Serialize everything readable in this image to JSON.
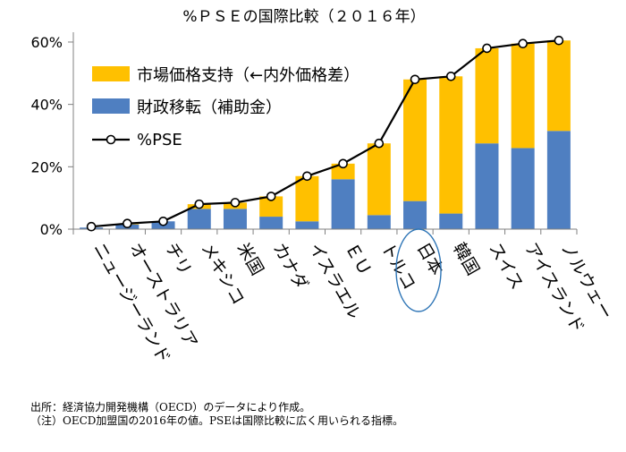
{
  "chart_data": {
    "type": "bar",
    "title": "%ＰＳＥの国際比較（２０１６年）",
    "categories": [
      "ニュージーランド",
      "オーストラリア",
      "チリ",
      "メキシコ",
      "米国",
      "カナダ",
      "イスラエル",
      "ＥＵ",
      "トルコ",
      "日本",
      "韓国",
      "スイス",
      "アイスランド",
      "ノルウェー"
    ],
    "series": [
      {
        "name": "財政移転（補助金）",
        "type": "stacked-bar",
        "color": "#4f7fc1",
        "values": [
          0.5,
          1.5,
          2.5,
          6.5,
          6.5,
          4.0,
          2.5,
          16.0,
          4.5,
          9.0,
          5.0,
          27.5,
          26.0,
          31.5
        ]
      },
      {
        "name": "市場価格支持（←内外価格差）",
        "type": "stacked-bar",
        "color": "#ffc000",
        "values": [
          0.0,
          0.2,
          0.0,
          1.5,
          2.0,
          6.5,
          14.5,
          5.0,
          23.0,
          39.0,
          44.0,
          30.5,
          33.5,
          29.0
        ]
      },
      {
        "name": "%PSE",
        "type": "line",
        "color": "#000000",
        "values": [
          0.8,
          1.8,
          2.5,
          8.0,
          8.5,
          10.5,
          17.0,
          21.0,
          27.5,
          48.0,
          49.0,
          58.0,
          59.5,
          60.5
        ]
      }
    ],
    "yticks": [
      "0%",
      "20%",
      "40%",
      "60%"
    ],
    "ylim": [
      0,
      62
    ],
    "grid": "none",
    "legend": "top-left inside plot",
    "highlight": {
      "category": "日本",
      "shape": "ellipse",
      "color": "#2e75b6"
    }
  },
  "notes": [
    "出所：経済協力開発機構（OECD）のデータにより作成。",
    "（注）OECD加盟国の2016年の値。PSEは国際比較に広く用いられる指標。"
  ]
}
